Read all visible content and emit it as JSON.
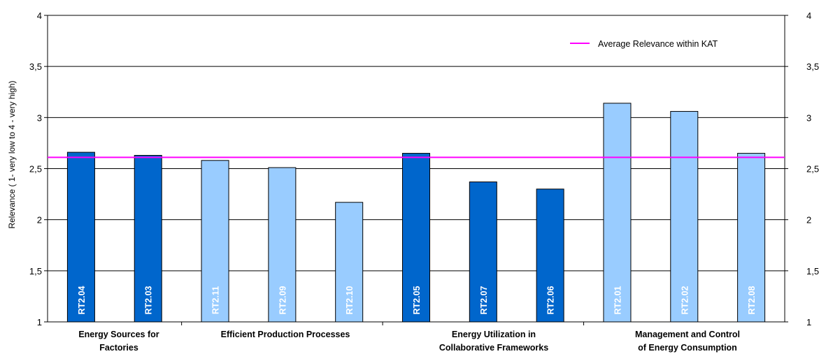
{
  "chart_data": {
    "type": "bar",
    "ylabel": "Relevance ( 1- very low to 4 - very high)",
    "ylim": [
      1,
      4
    ],
    "ytick_labels": [
      "1",
      "1,5",
      "2",
      "2,5",
      "3",
      "3,5",
      "4"
    ],
    "yticks": [
      1,
      1.5,
      2,
      2.5,
      3,
      3.5,
      4
    ],
    "secondary_axis": true,
    "grid": true,
    "categories": [
      "RT2.04",
      "RT2.03",
      "RT2.11",
      "RT2.09",
      "RT2.10",
      "RT2.05",
      "RT2.07",
      "RT2.06",
      "RT2.01",
      "RT2.02",
      "RT2.08"
    ],
    "values": [
      2.66,
      2.63,
      2.58,
      2.51,
      2.17,
      2.65,
      2.37,
      2.3,
      3.14,
      3.06,
      2.65
    ],
    "bar_colors": [
      "#0066cc",
      "#0066cc",
      "#99ccff",
      "#99ccff",
      "#99ccff",
      "#0066cc",
      "#0066cc",
      "#0066cc",
      "#99ccff",
      "#99ccff",
      "#99ccff"
    ],
    "groups": [
      {
        "lines": [
          "Energy Sources for",
          "Factories"
        ]
      },
      {
        "lines": [
          "Efficient Production Processes"
        ]
      },
      {
        "lines": [
          "Energy Utilization in",
          "Collaborative Frameworks"
        ]
      },
      {
        "lines": [
          "Management and Control",
          "of Energy Consumption"
        ]
      }
    ],
    "reference_line": {
      "name": "Average Relevance within KAT",
      "value": 2.61,
      "color": "#ff00ff"
    },
    "legend_position": "top-right"
  }
}
